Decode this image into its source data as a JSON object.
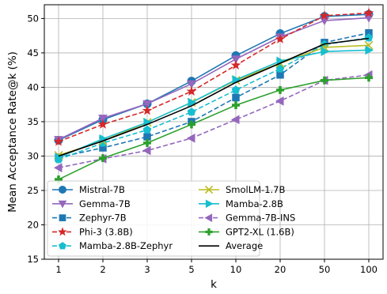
{
  "chart_data": {
    "type": "line",
    "xlabel": "k",
    "ylabel": "Mean Acceptance Rate@k (%)",
    "categories": [
      "1",
      "2",
      "3",
      "5",
      "10",
      "20",
      "50",
      "100"
    ],
    "ylim": [
      15,
      52
    ],
    "yticks": [
      15,
      20,
      25,
      30,
      35,
      40,
      45,
      50
    ],
    "grid": true,
    "legend_position": "lower-left",
    "series": [
      {
        "name": "Mistral-7B",
        "color": "#1f77b4",
        "linestyle": "solid",
        "marker": "circle",
        "values": [
          32.3,
          35.3,
          37.6,
          40.9,
          44.6,
          47.8,
          50.3,
          50.6
        ]
      },
      {
        "name": "Gemma-7B",
        "color": "#9467bd",
        "linestyle": "solid",
        "marker": "triangle-down",
        "values": [
          32.4,
          35.5,
          37.6,
          40.5,
          44.1,
          47.3,
          49.7,
          50.1
        ]
      },
      {
        "name": "Zephyr-7B",
        "color": "#1f77b4",
        "linestyle": "dashed",
        "marker": "square",
        "values": [
          29.8,
          31.2,
          32.8,
          35.0,
          38.5,
          41.8,
          46.5,
          47.9
        ]
      },
      {
        "name": "Phi-3 (3.8B)",
        "color": "#d62728",
        "linestyle": "dashed",
        "marker": "star",
        "values": [
          32.1,
          34.6,
          36.6,
          39.4,
          43.2,
          47.0,
          50.4,
          50.8
        ]
      },
      {
        "name": "Mamba-2.8B-Zephyr",
        "color": "#17becf",
        "linestyle": "dashed",
        "marker": "pentagon",
        "values": [
          29.5,
          31.9,
          33.8,
          36.4,
          39.6,
          42.7,
          46.2,
          47.2
        ]
      },
      {
        "name": "SmolLM-1.7B",
        "color": "#bcbd22",
        "linestyle": "solid",
        "marker": "x",
        "values": [
          30.1,
          32.2,
          34.9,
          37.8,
          41.0,
          43.5,
          45.8,
          46.1
        ]
      },
      {
        "name": "Mamba-2.8B",
        "color": "#17becf",
        "linestyle": "solid",
        "marker": "triangle-right",
        "values": [
          29.8,
          32.5,
          34.9,
          37.8,
          41.1,
          43.8,
          45.2,
          45.4
        ]
      },
      {
        "name": "Gemma-7B-INS",
        "color": "#9467bd",
        "linestyle": "dashed",
        "marker": "triangle-left",
        "values": [
          28.3,
          29.6,
          30.8,
          32.6,
          35.3,
          38.0,
          41.0,
          41.8
        ]
      },
      {
        "name": "GPT2-XL (1.6B)",
        "color": "#2ca02c",
        "linestyle": "solid",
        "marker": "plus",
        "values": [
          26.6,
          29.7,
          31.9,
          34.6,
          37.4,
          39.6,
          41.0,
          41.4
        ]
      },
      {
        "name": "Average",
        "color": "#000000",
        "linestyle": "solid",
        "marker": "none",
        "values": [
          30.0,
          32.2,
          34.6,
          37.3,
          40.7,
          43.5,
          46.3,
          47.1
        ]
      }
    ]
  }
}
